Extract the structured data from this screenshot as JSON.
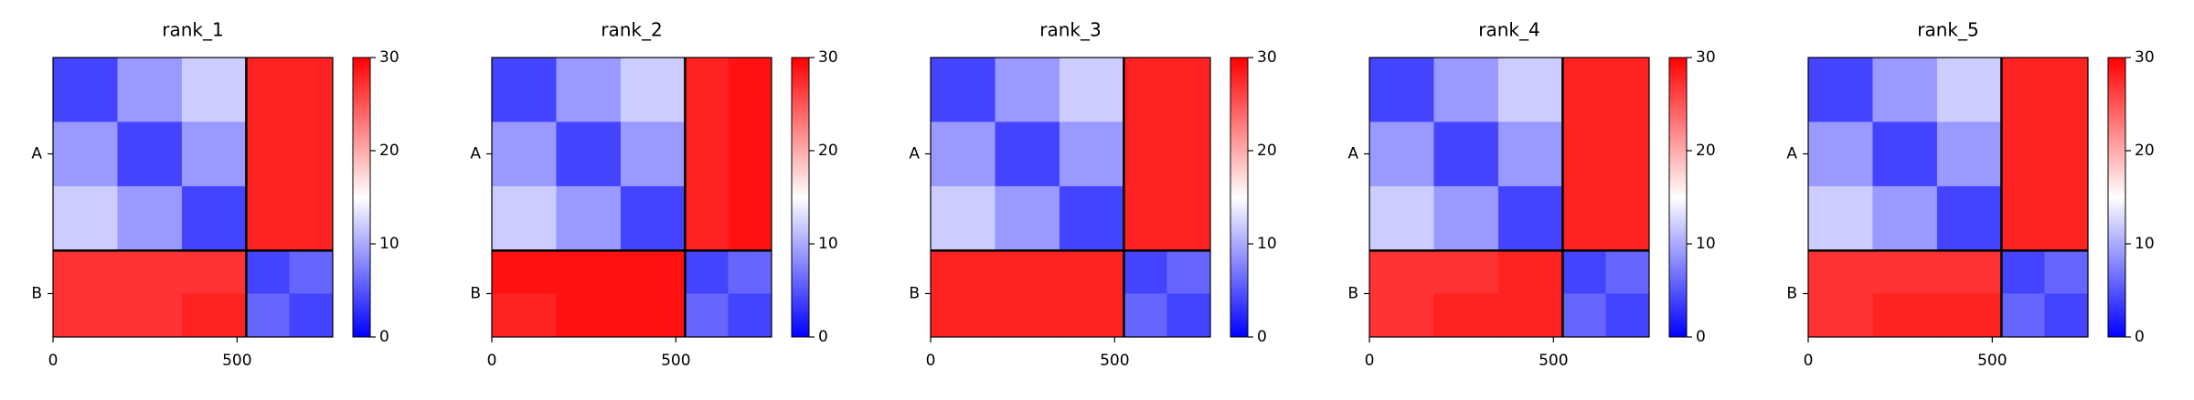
{
  "chart_data": [
    {
      "type": "heatmap",
      "title": "rank_1",
      "bins": [
        0,
        175,
        350,
        525,
        642,
        760
      ],
      "xlim": [
        0,
        760
      ],
      "ylim": [
        760,
        0
      ],
      "xticks": [
        0,
        500
      ],
      "yticks": [
        {
          "value": 262,
          "label": "A"
        },
        {
          "value": 642,
          "label": "B"
        }
      ],
      "boundaries": [
        525
      ],
      "cmap": [
        "#0000ff",
        "#ffffff",
        "#ff0000"
      ],
      "colorbar": {
        "lim": [
          0,
          30
        ],
        "ticks": [
          0,
          10,
          20,
          30
        ]
      },
      "values": [
        [
          4,
          9,
          12,
          28,
          28
        ],
        [
          9,
          4,
          9,
          28,
          28
        ],
        [
          12,
          9,
          4,
          28,
          28
        ],
        [
          27,
          27,
          27,
          4,
          6
        ],
        [
          27,
          27,
          28,
          6,
          4
        ]
      ]
    },
    {
      "type": "heatmap",
      "title": "rank_2",
      "bins": [
        0,
        175,
        350,
        525,
        642,
        760
      ],
      "xlim": [
        0,
        760
      ],
      "ylim": [
        760,
        0
      ],
      "xticks": [
        0,
        500
      ],
      "yticks": [
        {
          "value": 262,
          "label": "A"
        },
        {
          "value": 642,
          "label": "B"
        }
      ],
      "boundaries": [
        525
      ],
      "cmap": [
        "#0000ff",
        "#ffffff",
        "#ff0000"
      ],
      "colorbar": {
        "lim": [
          0,
          30
        ],
        "ticks": [
          0,
          10,
          20,
          30
        ]
      },
      "values": [
        [
          4,
          9,
          12,
          28,
          29
        ],
        [
          9,
          4,
          9,
          28,
          29
        ],
        [
          12,
          9,
          4,
          28,
          29
        ],
        [
          29,
          29,
          29,
          4,
          6
        ],
        [
          28,
          29,
          29,
          6,
          4
        ]
      ]
    },
    {
      "type": "heatmap",
      "title": "rank_3",
      "bins": [
        0,
        175,
        350,
        525,
        642,
        760
      ],
      "xlim": [
        0,
        760
      ],
      "ylim": [
        760,
        0
      ],
      "xticks": [
        0,
        500
      ],
      "yticks": [
        {
          "value": 262,
          "label": "A"
        },
        {
          "value": 642,
          "label": "B"
        }
      ],
      "boundaries": [
        525
      ],
      "cmap": [
        "#0000ff",
        "#ffffff",
        "#ff0000"
      ],
      "colorbar": {
        "lim": [
          0,
          30
        ],
        "ticks": [
          0,
          10,
          20,
          30
        ]
      },
      "values": [
        [
          4,
          9,
          12,
          28,
          28
        ],
        [
          9,
          4,
          9,
          28,
          28
        ],
        [
          12,
          9,
          4,
          28,
          28
        ],
        [
          28,
          28,
          28,
          4,
          6
        ],
        [
          28,
          28,
          28,
          6,
          4
        ]
      ]
    },
    {
      "type": "heatmap",
      "title": "rank_4",
      "bins": [
        0,
        175,
        350,
        525,
        642,
        760
      ],
      "xlim": [
        0,
        760
      ],
      "ylim": [
        760,
        0
      ],
      "xticks": [
        0,
        500
      ],
      "yticks": [
        {
          "value": 262,
          "label": "A"
        },
        {
          "value": 642,
          "label": "B"
        }
      ],
      "boundaries": [
        525
      ],
      "cmap": [
        "#0000ff",
        "#ffffff",
        "#ff0000"
      ],
      "colorbar": {
        "lim": [
          0,
          30
        ],
        "ticks": [
          0,
          10,
          20,
          30
        ]
      },
      "values": [
        [
          4,
          9,
          12,
          28,
          28
        ],
        [
          9,
          4,
          9,
          28,
          28
        ],
        [
          12,
          9,
          4,
          28,
          28
        ],
        [
          27,
          27,
          28,
          4,
          6
        ],
        [
          27,
          28,
          28,
          6,
          4
        ]
      ]
    },
    {
      "type": "heatmap",
      "title": "rank_5",
      "bins": [
        0,
        175,
        350,
        525,
        642,
        760
      ],
      "xlim": [
        0,
        760
      ],
      "ylim": [
        760,
        0
      ],
      "xticks": [
        0,
        500
      ],
      "yticks": [
        {
          "value": 262,
          "label": "A"
        },
        {
          "value": 642,
          "label": "B"
        }
      ],
      "boundaries": [
        525
      ],
      "cmap": [
        "#0000ff",
        "#ffffff",
        "#ff0000"
      ],
      "colorbar": {
        "lim": [
          0,
          30
        ],
        "ticks": [
          0,
          10,
          20,
          30
        ]
      },
      "values": [
        [
          4,
          9,
          12,
          28,
          28
        ],
        [
          9,
          4,
          9,
          28,
          28
        ],
        [
          12,
          9,
          4,
          28,
          28
        ],
        [
          27,
          27,
          27,
          4,
          6
        ],
        [
          27,
          28,
          28,
          6,
          4
        ]
      ]
    }
  ]
}
